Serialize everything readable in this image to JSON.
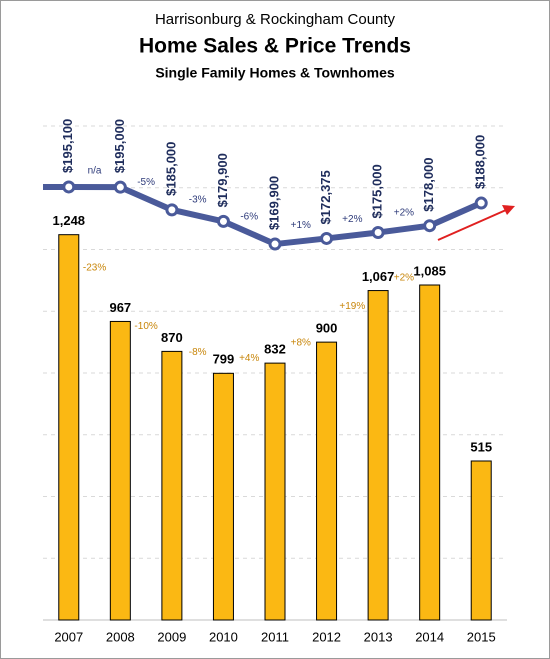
{
  "chart_data": {
    "type": "combo",
    "supertitle": "Harrisonburg & Rockingham County",
    "title": "Home Sales & Price Trends",
    "subtitle": "Single Family Homes & Townhomes",
    "categories": [
      "2007",
      "2008",
      "2009",
      "2010",
      "2011",
      "2012",
      "2013",
      "2014",
      "2015"
    ],
    "ylim": [
      0,
      1600
    ],
    "yticks": [
      0,
      200,
      400,
      600,
      800,
      1000,
      1200,
      1400,
      1600
    ],
    "y2lim": [
      4000,
      222000
    ],
    "grid": true,
    "series": [
      {
        "type": "bar",
        "color": "#fbb813",
        "values": [
          1248,
          967,
          870,
          799,
          832,
          900,
          1067,
          1085,
          515
        ],
        "value_labels": [
          "1,248",
          "967",
          "870",
          "799",
          "832",
          "900",
          "1,067",
          "1,085",
          "515"
        ],
        "change_labels": [
          "-23%",
          "-10%",
          "-8%",
          "+4%",
          "+8%",
          "+19%",
          "+2%"
        ],
        "change_color": "#c8860a"
      },
      {
        "type": "line",
        "axis": "y2",
        "color": "#4a5a9a",
        "values": [
          195100,
          195000,
          185000,
          179900,
          169900,
          172375,
          175000,
          178000,
          188000
        ],
        "value_labels": [
          "$195,100",
          "$195,000",
          "$185,000",
          "$179,900",
          "$169,900",
          "$172,375",
          "$175,000",
          "$178,000",
          "$188,000"
        ],
        "change_labels": [
          "n/a",
          "-5%",
          "-3%",
          "-6%",
          "+1%",
          "+2%",
          "+2%"
        ],
        "change_color": "#2e3b7a"
      }
    ]
  }
}
